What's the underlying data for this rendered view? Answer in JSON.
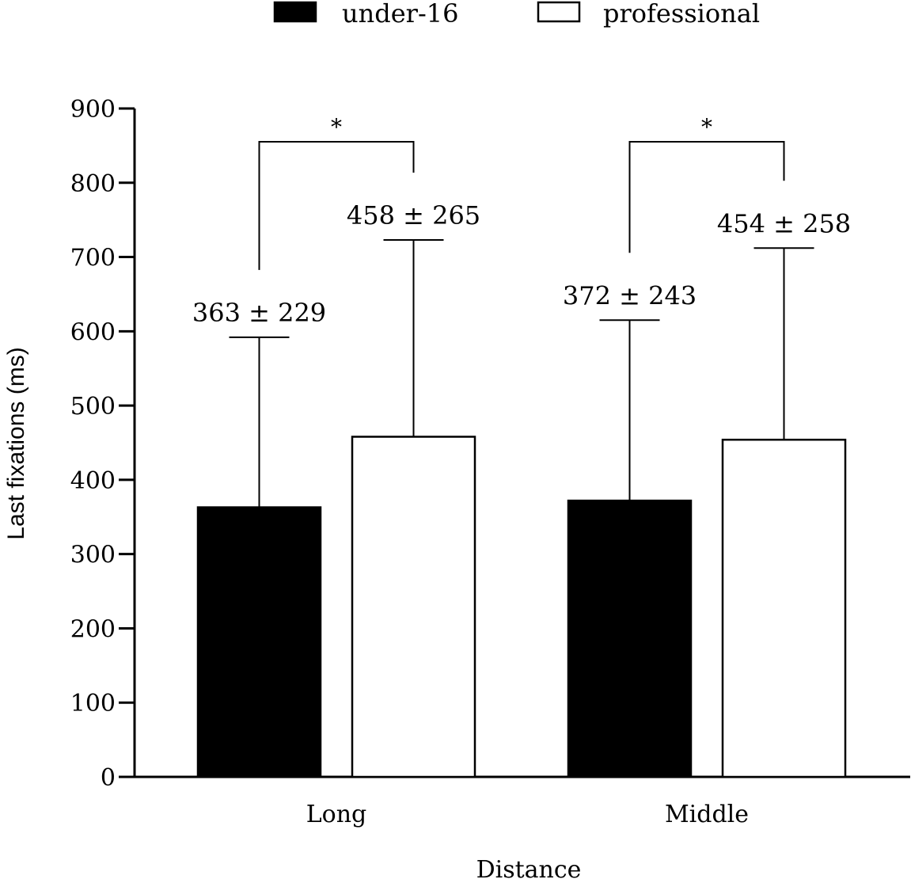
{
  "chart_data": {
    "type": "bar",
    "categories": [
      "Long",
      "Middle"
    ],
    "series": [
      {
        "name": "under-16",
        "values": [
          363,
          372
        ],
        "errors": [
          229,
          243
        ],
        "fill": "#000000",
        "labels": [
          "363 ± 229",
          "372 ± 243"
        ]
      },
      {
        "name": "professional",
        "values": [
          458,
          454
        ],
        "errors": [
          265,
          258
        ],
        "fill": "#ffffff",
        "labels": [
          "458 ± 265",
          "454 ± 258"
        ]
      }
    ],
    "xlabel": "Distance",
    "ylabel": "Last fixations (ms)",
    "ylim": [
      0,
      900
    ],
    "yticks": [
      0,
      100,
      200,
      300,
      400,
      500,
      600,
      700,
      800,
      900
    ],
    "significance": [
      {
        "category": "Long",
        "label": "*"
      },
      {
        "category": "Middle",
        "label": "*"
      }
    ],
    "legend_position": "top-center",
    "grid": false
  }
}
